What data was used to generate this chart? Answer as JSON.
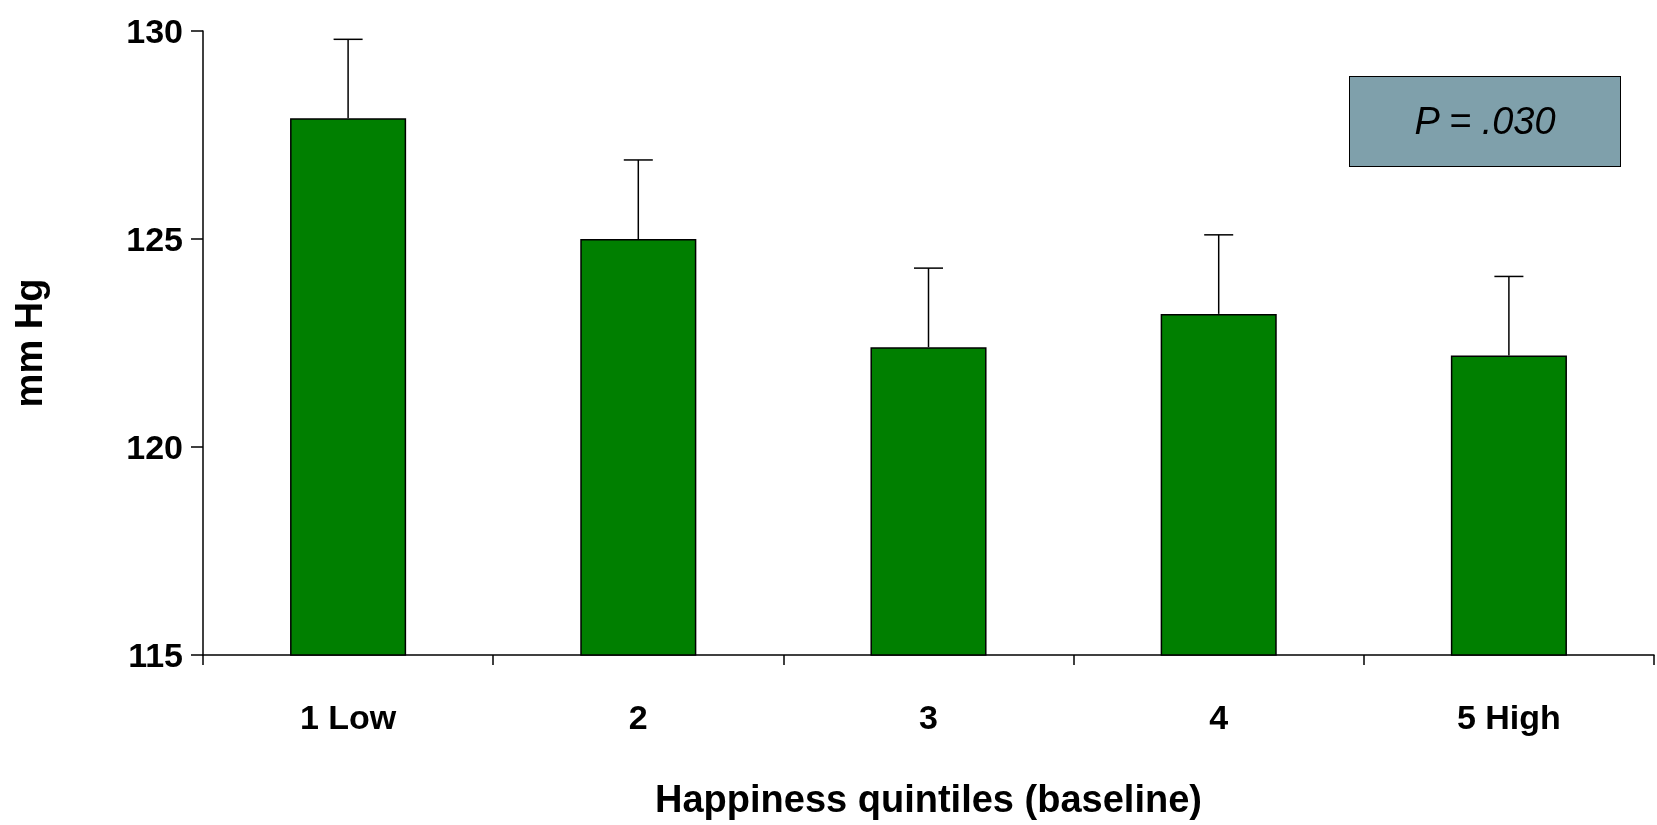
{
  "chart_data": {
    "type": "bar",
    "categories": [
      "1 Low",
      "2",
      "3",
      "4",
      "5 High"
    ],
    "values": [
      127.9,
      125.0,
      122.4,
      123.2,
      122.2
    ],
    "errors": [
      [
        127.9,
        129.8
      ],
      [
        125.0,
        126.9
      ],
      [
        122.4,
        124.3
      ],
      [
        123.2,
        125.1
      ],
      [
        122.2,
        124.1
      ]
    ],
    "color": "#007f00",
    "xlabel": "Happiness quintiles (baseline)",
    "ylabel": "mm Hg",
    "ylim": [
      115,
      130
    ],
    "yticks": [
      115,
      120,
      125,
      130
    ],
    "annotations": [
      "P = .030"
    ],
    "grid": false
  }
}
